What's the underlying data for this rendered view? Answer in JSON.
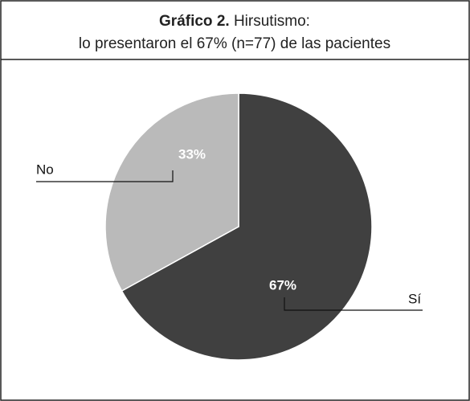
{
  "chart_data": {
    "type": "pie",
    "title_prefix": "Gráfico 2.",
    "title": "Hirsutismo:",
    "subtitle": "lo presentaron el 67% (n=77) de las pacientes",
    "categories": [
      "Sí",
      "No"
    ],
    "values": [
      67,
      33
    ],
    "value_labels": [
      "67%",
      "33%"
    ],
    "colors": [
      "#404040",
      "#bababa"
    ]
  }
}
